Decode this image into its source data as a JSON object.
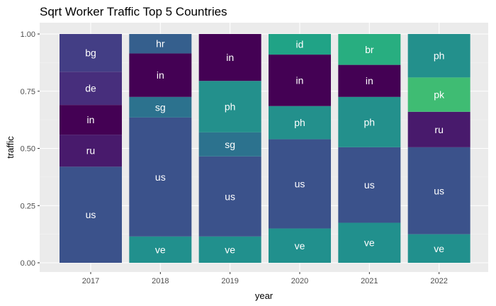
{
  "chart_data": {
    "type": "bar",
    "stacked": true,
    "title": "Sqrt Worker Traffic Top 5 Countries",
    "xlabel": "year",
    "ylabel": "traffic",
    "ylim": [
      0,
      1
    ],
    "y_ticks": [
      0.0,
      0.25,
      0.5,
      0.75,
      1.0
    ],
    "y_tick_labels": [
      "0.00",
      "0.25",
      "0.50",
      "0.75",
      "1.00"
    ],
    "grid": true,
    "legend": "none",
    "categories": [
      "2017",
      "2018",
      "2019",
      "2020",
      "2021",
      "2022"
    ],
    "stacks": [
      [
        {
          "label": "us",
          "value": 0.42
        },
        {
          "label": "ru",
          "value": 0.14
        },
        {
          "label": "in",
          "value": 0.13
        },
        {
          "label": "de",
          "value": 0.145
        },
        {
          "label": "bg",
          "value": 0.165
        }
      ],
      [
        {
          "label": "ve",
          "value": 0.115
        },
        {
          "label": "us",
          "value": 0.52
        },
        {
          "label": "sg",
          "value": 0.09
        },
        {
          "label": "in",
          "value": 0.19
        },
        {
          "label": "hr",
          "value": 0.085
        }
      ],
      [
        {
          "label": "ve",
          "value": 0.115
        },
        {
          "label": "us",
          "value": 0.35
        },
        {
          "label": "sg",
          "value": 0.105
        },
        {
          "label": "ph",
          "value": 0.225
        },
        {
          "label": "in",
          "value": 0.205
        }
      ],
      [
        {
          "label": "ve",
          "value": 0.15
        },
        {
          "label": "us",
          "value": 0.39
        },
        {
          "label": "ph",
          "value": 0.145
        },
        {
          "label": "in",
          "value": 0.225
        },
        {
          "label": "id",
          "value": 0.09
        }
      ],
      [
        {
          "label": "ve",
          "value": 0.175
        },
        {
          "label": "us",
          "value": 0.33
        },
        {
          "label": "ph",
          "value": 0.22
        },
        {
          "label": "in",
          "value": 0.14
        },
        {
          "label": "br",
          "value": 0.135
        }
      ],
      [
        {
          "label": "ve",
          "value": 0.125
        },
        {
          "label": "us",
          "value": 0.38
        },
        {
          "label": "ru",
          "value": 0.155
        },
        {
          "label": "pk",
          "value": 0.15
        },
        {
          "label": "ph",
          "value": 0.19
        }
      ]
    ],
    "colors": {
      "us": "#3b528b",
      "ve": "#21908d",
      "ph": "#23908c",
      "in": "#440154",
      "ru": "#481a6c",
      "de": "#472e7c",
      "bg": "#433e85",
      "sg": "#2c728e",
      "hr": "#355f8d",
      "id": "#20a386",
      "br": "#28ae80",
      "pk": "#3fbc73"
    }
  }
}
